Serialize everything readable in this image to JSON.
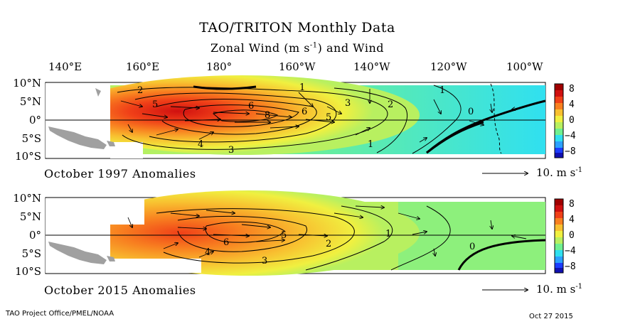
{
  "header": {
    "title": "TAO/TRITON Monthly Data",
    "subtitle_main": "Zonal Wind (m s",
    "subtitle_exp": "-1",
    "subtitle_tail": ") and Wind"
  },
  "longitude_labels": [
    "140°E",
    "160°E",
    "180°",
    "160°W",
    "140°W",
    "120°W",
    "100°W"
  ],
  "latitude_labels": [
    "10°N",
    "5°N",
    "0°",
    "5°S",
    "10°S"
  ],
  "colorbar": {
    "ticks": [
      "8",
      "4",
      "4",
      "0",
      "−4",
      "−8"
    ],
    "colors": [
      "#1010b0",
      "#1c3cff",
      "#2ca0ff",
      "#30e0f0",
      "#70f090",
      "#b8f060",
      "#f0f040",
      "#f8c030",
      "#f88020",
      "#f04018",
      "#d01010",
      "#a00000"
    ]
  },
  "panels": [
    {
      "label": "October 1997 Anomalies",
      "reference_vector": "10. m s",
      "reference_exp": "-1",
      "contour_labels": [
        "2",
        "1",
        "1",
        "5",
        "6",
        "8",
        "6",
        "5",
        "3",
        "2",
        "0",
        "4",
        "3",
        "1"
      ]
    },
    {
      "label": "October 2015 Anomalies",
      "reference_vector": "10. m s",
      "reference_exp": "-1",
      "contour_labels": [
        "6",
        "5",
        "4",
        "3",
        "2",
        "1",
        "0"
      ]
    }
  ],
  "footer": {
    "left": "TAO Project Office/PMEL/NOAA",
    "right": "Oct 27 2015"
  }
}
